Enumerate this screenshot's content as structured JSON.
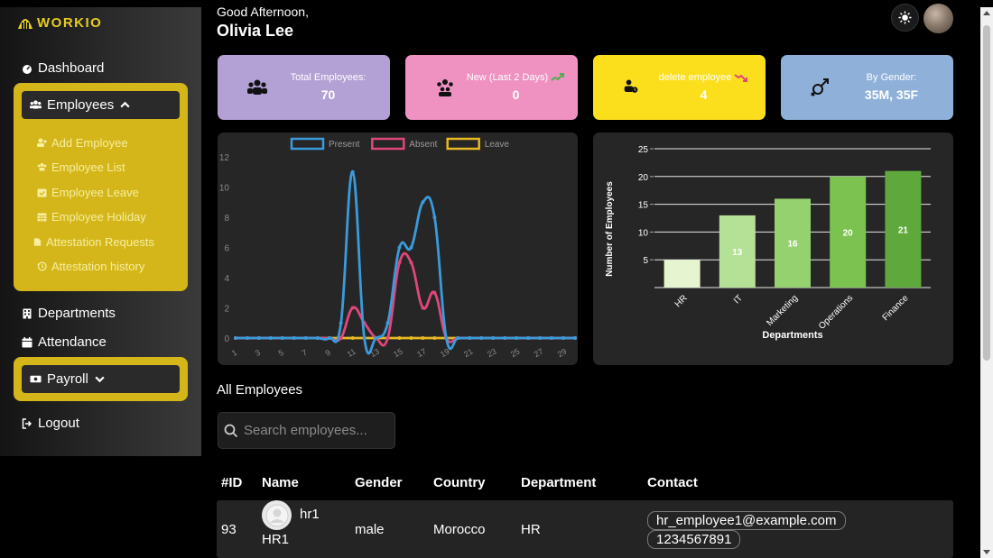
{
  "app": {
    "logo_text": "WORKIO"
  },
  "colors": {
    "accent": "#d4b61a",
    "logo": "#e8cc1f",
    "present": "#3a9bdc",
    "absent": "#e0467c",
    "leave": "#e8b923",
    "bar_dark": "#5fa83b",
    "bar_light": "#e6f5d0"
  },
  "sidebar": {
    "dashboard": "Dashboard",
    "employees": "Employees",
    "employee_sub": [
      {
        "label": "Add Employee",
        "icon": "user-plus-icon"
      },
      {
        "label": "Employee List",
        "icon": "users-icon"
      },
      {
        "label": "Employee Leave",
        "icon": "calendar-check-icon"
      },
      {
        "label": "Employee Holiday",
        "icon": "calendar-icon"
      },
      {
        "label": "Attestation Requests",
        "icon": "file-icon"
      },
      {
        "label": "Attestation history",
        "icon": "history-icon"
      }
    ],
    "departments": "Departments",
    "attendance": "Attendance",
    "payroll": "Payroll",
    "logout": "Logout"
  },
  "header": {
    "greeting": "Good Afternoon,",
    "user_name": "Olivia Lee"
  },
  "cards": [
    {
      "title": "Total Employees:",
      "value": "70",
      "color": "#b3a0d4"
    },
    {
      "title": "New (Last 2 Days)",
      "value": "0",
      "color": "#ef92c2"
    },
    {
      "title": "delete employee",
      "value": "4",
      "color": "#fbdf1d"
    },
    {
      "title": "By Gender:",
      "value": "35M, 35F",
      "color": "#8fb0d8"
    }
  ],
  "chart_data": [
    {
      "type": "line",
      "title": "",
      "x": [
        1,
        2,
        3,
        4,
        5,
        6,
        7,
        8,
        9,
        10,
        11,
        12,
        13,
        14,
        15,
        16,
        17,
        18,
        19,
        20,
        21,
        22,
        23,
        24,
        25,
        26,
        27,
        28,
        29,
        30
      ],
      "xtick_labels": [
        "1",
        "3",
        "5",
        "7",
        "9",
        "11",
        "13",
        "15",
        "17",
        "19",
        "21",
        "23",
        "25",
        "27",
        "29"
      ],
      "ylim": [
        0,
        12
      ],
      "ytick_labels": [
        "0",
        "2",
        "4",
        "6",
        "8",
        "10",
        "12"
      ],
      "legend_position": "top",
      "series": [
        {
          "name": "Present",
          "values": [
            0,
            0,
            0,
            0,
            0,
            0,
            0,
            0,
            0,
            1,
            11,
            0,
            0,
            1,
            6,
            6,
            9,
            8,
            0,
            0,
            0,
            0,
            0,
            0,
            0,
            0,
            0,
            0,
            0,
            0
          ]
        },
        {
          "name": "Absent",
          "values": [
            0,
            0,
            0,
            0,
            0,
            0,
            0,
            0,
            0,
            0,
            2,
            1,
            0,
            0,
            5,
            5,
            2,
            3,
            0,
            0,
            0,
            0,
            0,
            0,
            0,
            0,
            0,
            0,
            0,
            0
          ]
        },
        {
          "name": "Leave",
          "values": [
            0,
            0,
            0,
            0,
            0,
            0,
            0,
            0,
            0,
            0,
            0,
            0,
            0,
            0,
            0,
            0,
            0,
            0,
            0,
            0,
            0,
            0,
            0,
            0,
            0,
            0,
            0,
            0,
            0,
            0
          ]
        }
      ]
    },
    {
      "type": "bar",
      "title": "",
      "categories": [
        "HR",
        "IT",
        "Marketing",
        "Operations",
        "Finance"
      ],
      "values": [
        5,
        13,
        16,
        20,
        21
      ],
      "data_labels": [
        "",
        "13",
        "16",
        "20",
        "21"
      ],
      "xlabel": "Departments",
      "ylabel": "Number of Employees",
      "ylim": [
        0,
        25
      ],
      "ytick_labels": [
        "5",
        "10",
        "15",
        "20",
        "25"
      ],
      "grid": true
    }
  ],
  "employees_section": {
    "title": "All Employees",
    "search_placeholder": "Search employees...",
    "columns": [
      "#ID",
      "Name",
      "Gender",
      "Country",
      "Department",
      "Contact"
    ],
    "rows": [
      {
        "id": "93",
        "username": "hr1",
        "name": "HR1",
        "gender": "male",
        "country": "Morocco",
        "department": "HR",
        "email": "hr_employee1@example.com",
        "phone": "1234567891"
      }
    ]
  }
}
